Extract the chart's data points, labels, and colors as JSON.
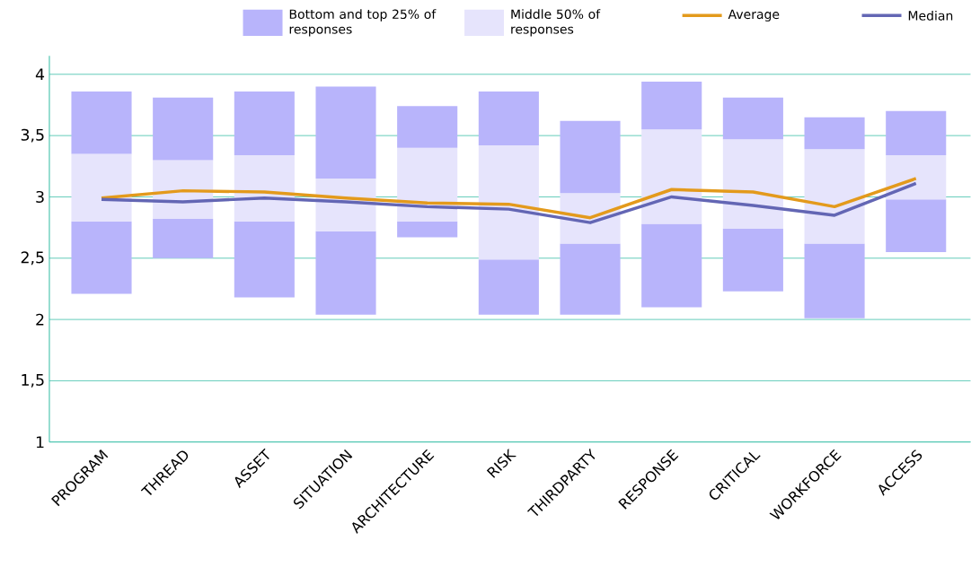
{
  "chart_data": {
    "type": "bar",
    "categories": [
      "PROGRAM",
      "THREAD",
      "ASSET",
      "SITUATION",
      "ARCHITECTURE",
      "RISK",
      "THIRDPARTY",
      "RESPONSE",
      "CRITICAL",
      "WORKFORCE",
      "ACCESS"
    ],
    "series": [
      {
        "name": "Bottom and top 25% of responses",
        "color": "#b8b4fb",
        "base": [
          2.21,
          2.5,
          2.18,
          2.04,
          2.67,
          2.04,
          2.04,
          2.1,
          2.23,
          2.01,
          2.55
        ],
        "values": [
          0.59,
          0.32,
          0.62,
          0.68,
          0.13,
          0.45,
          0.58,
          0.68,
          0.51,
          0.61,
          0.43
        ]
      },
      {
        "name": "Middle 50% of responses",
        "color": "#e6e4fc",
        "base": [
          2.8,
          2.82,
          2.8,
          2.72,
          2.8,
          2.49,
          2.62,
          2.78,
          2.74,
          2.62,
          2.98
        ],
        "values": [
          0.55,
          0.48,
          0.54,
          0.43,
          0.6,
          0.93,
          0.41,
          0.77,
          0.73,
          0.77,
          0.36
        ]
      },
      {
        "color": "#b8b4fb",
        "base": [
          3.35,
          3.3,
          3.34,
          3.15,
          3.4,
          3.42,
          3.03,
          3.55,
          3.47,
          3.39,
          3.34
        ],
        "values": [
          0.51,
          0.51,
          0.52,
          0.75,
          0.34,
          0.44,
          0.59,
          0.39,
          0.34,
          0.26,
          0.36
        ]
      },
      {
        "name": "Average",
        "type": "line",
        "marker": "none",
        "color": "#e39a1c",
        "values": [
          2.99,
          3.05,
          3.04,
          2.99,
          2.95,
          2.94,
          2.83,
          3.06,
          3.04,
          2.92,
          3.15
        ]
      },
      {
        "name": "Median",
        "type": "line",
        "marker": "none",
        "color": "#6366b4",
        "values": [
          2.98,
          2.96,
          2.99,
          2.96,
          2.92,
          2.9,
          2.79,
          3.0,
          2.93,
          2.85,
          3.11
        ]
      }
    ],
    "ylim": [
      1,
      4.15
    ],
    "yticks": [
      1,
      {
        "value": 1.5,
        "label": "1,5"
      },
      2,
      {
        "value": 2.5,
        "label": "2,5"
      },
      3,
      {
        "value": 3.5,
        "label": "3,5"
      },
      4
    ],
    "grid": "y",
    "legend": "top"
  }
}
